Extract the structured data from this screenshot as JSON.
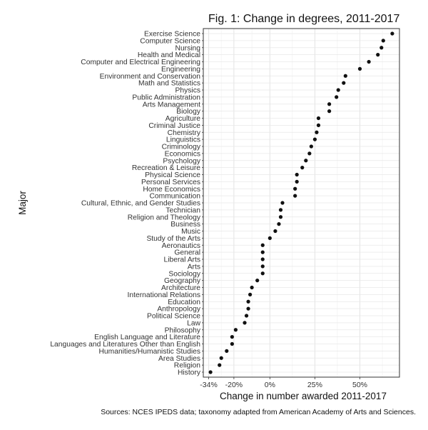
{
  "chart_data": {
    "type": "scatter",
    "title": "Fig. 1: Change in degrees, 2011-2017",
    "xlabel": "Change in number awarded 2011-2017",
    "ylabel": "Major",
    "source": "Sources: NCES IPEDS data; taxonomy adapted from American Academy of Arts and Sciences.",
    "xlim": [
      -37,
      72
    ],
    "x_ticks": [
      {
        "value": -34,
        "label": "-34%"
      },
      {
        "value": -20,
        "label": "-20%"
      },
      {
        "value": 0,
        "label": "0%"
      },
      {
        "value": 25,
        "label": "25%"
      },
      {
        "value": 50,
        "label": "50%"
      }
    ],
    "x_units": "percent change",
    "grid": true,
    "categories": [
      "Exercise Science",
      "Computer Science",
      "Nursing",
      "Health and Medical",
      "Computer and Electrical Engineering",
      "Engineering",
      "Environment and Conservation",
      "Math and Statistics",
      "Physics",
      "Public Administration",
      "Arts Management",
      "Biology",
      "Agriculture",
      "Criminal Justice",
      "Chemistry",
      "Linguistics",
      "Criminology",
      "Economics",
      "Psychology",
      "Recreation & Leisure",
      "Physical Science",
      "Personal Services",
      "Home Economics",
      "Communication",
      "Cultural, Ethnic, and Gender Studies",
      "Technician",
      "Religion and Theology",
      "Business",
      "Music",
      "Study of the Arts",
      "Aeronautics",
      "General",
      "Liberal Arts",
      "Arts",
      "Sociology",
      "Geography",
      "Architecture",
      "International Relations",
      "Education",
      "Anthropology",
      "Political Science",
      "Law",
      "Philosophy",
      "English Language and Literature",
      "Languages and Literatures Other than English",
      "Humanities/Humanistic Studies",
      "Area Studies",
      "Religion",
      "History"
    ],
    "values": [
      68,
      63,
      62,
      60,
      55,
      50,
      42,
      41,
      38,
      37,
      33,
      33,
      27,
      27,
      26,
      25,
      23,
      22,
      20,
      18,
      15,
      15,
      14,
      14,
      7,
      6,
      6,
      5,
      3,
      0,
      -4,
      -4,
      -4,
      -4,
      -4,
      -7,
      -10,
      -11,
      -12,
      -12,
      -13,
      -14,
      -19,
      -21,
      -21,
      -24,
      -27,
      -28,
      -33
    ],
    "point_color": "#111111"
  }
}
